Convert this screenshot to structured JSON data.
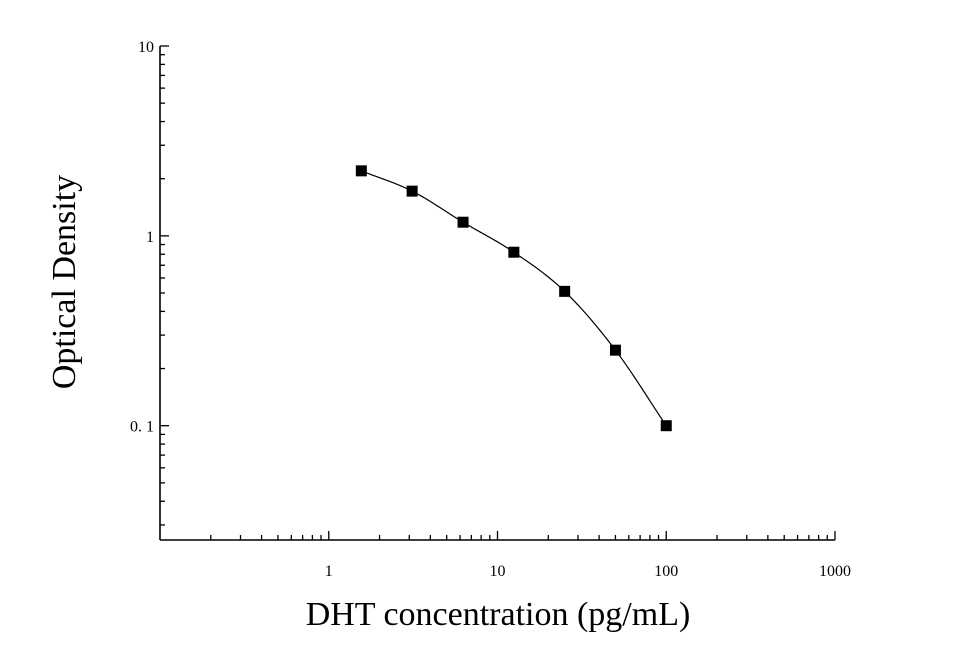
{
  "chart_data": {
    "type": "scatter",
    "xlabel": "DHT concentration (pg/mL)",
    "ylabel": "Optical Density",
    "x_scale": "log",
    "y_scale": "log",
    "xlim": [
      0.1,
      1000
    ],
    "ylim": [
      0.025,
      10
    ],
    "x_ticks": [
      {
        "value": 1,
        "label": "1"
      },
      {
        "value": 10,
        "label": "10"
      },
      {
        "value": 100,
        "label": "100"
      },
      {
        "value": 1000,
        "label": "1000"
      }
    ],
    "y_ticks": [
      {
        "value": 0.1,
        "label": "0. 1"
      },
      {
        "value": 1,
        "label": "1"
      },
      {
        "value": 10,
        "label": "10"
      }
    ],
    "grid": false,
    "series": [
      {
        "x": [
          1.56,
          3.12,
          6.25,
          12.5,
          25,
          50,
          100
        ],
        "y": [
          2.2,
          1.72,
          1.18,
          0.82,
          0.51,
          0.25,
          0.1
        ],
        "marker": "square",
        "fitted_curve": true,
        "color": "#000000"
      }
    ]
  }
}
